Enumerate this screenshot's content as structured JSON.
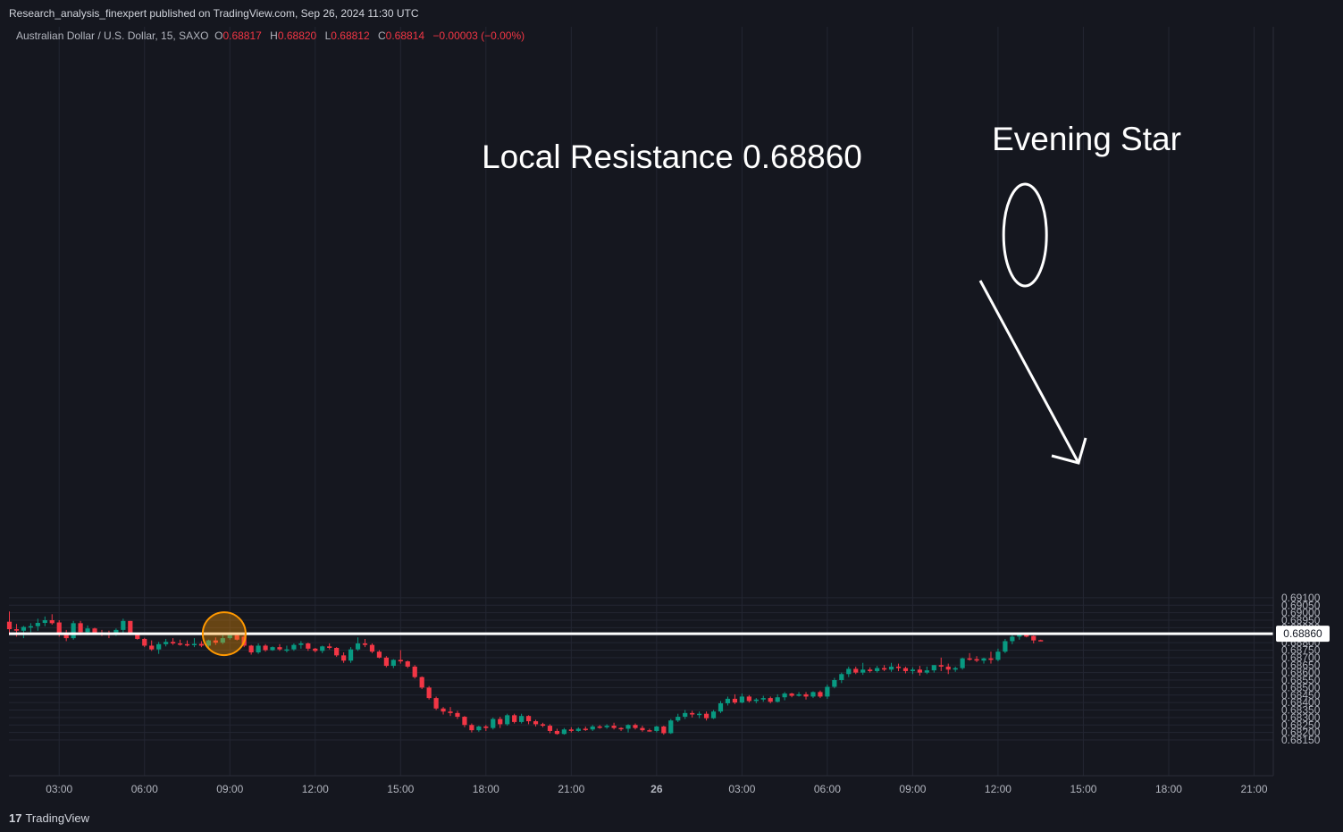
{
  "header": {
    "published_text": "Research_analysis_finexpert published on TradingView.com, Sep 26, 2024 11:30 UTC"
  },
  "symbol": {
    "name": "Australian Dollar / U.S. Dollar, 15, SAXO",
    "open_label": "O",
    "open": "0.68817",
    "high_label": "H",
    "high": "0.68820",
    "low_label": "L",
    "low": "0.68812",
    "close_label": "C",
    "close": "0.68814",
    "change": "−0.00003 (−0.00%)"
  },
  "footer": {
    "brand": "TradingView",
    "logo_glyph": "17"
  },
  "colors": {
    "background": "#15171f",
    "up": "#089981",
    "down": "#f23645",
    "grid": "#232632",
    "axis_text": "#b2b5be"
  },
  "chart_data": {
    "type": "candlestick",
    "title": "",
    "ylim": [
      0.6811,
      0.6912
    ],
    "y_ticks": [
      "0.68150",
      "0.68200",
      "0.68250",
      "0.68300",
      "0.68350",
      "0.68400",
      "0.68450",
      "0.68500",
      "0.68550",
      "0.68600",
      "0.68650",
      "0.68700",
      "0.68750",
      "0.68800",
      "0.68850",
      "0.68900",
      "0.68950",
      "0.69000",
      "0.69050",
      "0.69100"
    ],
    "x_ticks": [
      {
        "label": "03:00",
        "idx": 7,
        "bold": false
      },
      {
        "label": "06:00",
        "idx": 19,
        "bold": false
      },
      {
        "label": "09:00",
        "idx": 31,
        "bold": false
      },
      {
        "label": "12:00",
        "idx": 43,
        "bold": false
      },
      {
        "label": "15:00",
        "idx": 55,
        "bold": false
      },
      {
        "label": "18:00",
        "idx": 67,
        "bold": false
      },
      {
        "label": "21:00",
        "idx": 79,
        "bold": false
      },
      {
        "label": "26",
        "idx": 91,
        "bold": true
      },
      {
        "label": "03:00",
        "idx": 103,
        "bold": false
      },
      {
        "label": "06:00",
        "idx": 115,
        "bold": false
      },
      {
        "label": "09:00",
        "idx": 127,
        "bold": false
      },
      {
        "label": "12:00",
        "idx": 139,
        "bold": false
      },
      {
        "label": "15:00",
        "idx": 151,
        "bold": false
      },
      {
        "label": "18:00",
        "idx": 163,
        "bold": false
      },
      {
        "label": "21:00",
        "idx": 175,
        "bold": false
      }
    ],
    "ohlc": [
      [
        0.6894,
        0.69008,
        0.6885,
        0.6889
      ],
      [
        0.6889,
        0.68925,
        0.6884,
        0.6888
      ],
      [
        0.6888,
        0.68912,
        0.6883,
        0.68905
      ],
      [
        0.68905,
        0.6893,
        0.6887,
        0.6891
      ],
      [
        0.6891,
        0.6896,
        0.6888,
        0.68932
      ],
      [
        0.68932,
        0.68975,
        0.6891,
        0.6895
      ],
      [
        0.6895,
        0.6899,
        0.6892,
        0.6893
      ],
      [
        0.68935,
        0.6895,
        0.6884,
        0.6886
      ],
      [
        0.6886,
        0.68885,
        0.6881,
        0.6883
      ],
      [
        0.6883,
        0.68945,
        0.6882,
        0.6893
      ],
      [
        0.6893,
        0.68945,
        0.6885,
        0.6887
      ],
      [
        0.6887,
        0.68915,
        0.6885,
        0.68895
      ],
      [
        0.68895,
        0.689,
        0.68855,
        0.68865
      ],
      [
        0.68865,
        0.68885,
        0.68845,
        0.6886
      ],
      [
        0.6886,
        0.6888,
        0.6883,
        0.68855
      ],
      [
        0.68855,
        0.68895,
        0.68845,
        0.68885
      ],
      [
        0.68885,
        0.6896,
        0.68865,
        0.68945
      ],
      [
        0.68945,
        0.68945,
        0.6885,
        0.6886
      ],
      [
        0.6886,
        0.68865,
        0.6882,
        0.68825
      ],
      [
        0.68825,
        0.68832,
        0.6877,
        0.6878
      ],
      [
        0.6878,
        0.68815,
        0.68745,
        0.68755
      ],
      [
        0.68755,
        0.68805,
        0.68725,
        0.6879
      ],
      [
        0.6879,
        0.68825,
        0.68775,
        0.68805
      ],
      [
        0.68805,
        0.6883,
        0.68785,
        0.68795
      ],
      [
        0.68795,
        0.6882,
        0.6878,
        0.6879
      ],
      [
        0.6879,
        0.68815,
        0.68775,
        0.68785
      ],
      [
        0.68785,
        0.6883,
        0.6877,
        0.68792
      ],
      [
        0.68792,
        0.6881,
        0.6877,
        0.6878
      ],
      [
        0.6878,
        0.6882,
        0.68765,
        0.68815
      ],
      [
        0.68815,
        0.68835,
        0.68785,
        0.688
      ],
      [
        0.688,
        0.6885,
        0.6879,
        0.6883
      ],
      [
        0.6883,
        0.68865,
        0.6882,
        0.6885
      ],
      [
        0.6885,
        0.68865,
        0.68815,
        0.6882
      ],
      [
        0.6884,
        0.68855,
        0.6877,
        0.6878
      ],
      [
        0.6878,
        0.68785,
        0.6872,
        0.68735
      ],
      [
        0.68735,
        0.68795,
        0.68725,
        0.6878
      ],
      [
        0.6878,
        0.6879,
        0.6874,
        0.6875
      ],
      [
        0.6875,
        0.68775,
        0.68745,
        0.6877
      ],
      [
        0.6877,
        0.6879,
        0.68745,
        0.68755
      ],
      [
        0.68755,
        0.6878,
        0.68735,
        0.68755
      ],
      [
        0.68755,
        0.68795,
        0.68745,
        0.68785
      ],
      [
        0.68785,
        0.6881,
        0.6876,
        0.68795
      ],
      [
        0.68795,
        0.688,
        0.68745,
        0.6876
      ],
      [
        0.6876,
        0.68765,
        0.68735,
        0.68745
      ],
      [
        0.68745,
        0.6878,
        0.6873,
        0.68775
      ],
      [
        0.68775,
        0.68795,
        0.68755,
        0.68765
      ],
      [
        0.68765,
        0.6877,
        0.68705,
        0.68715
      ],
      [
        0.68715,
        0.68735,
        0.68665,
        0.6868
      ],
      [
        0.6868,
        0.6877,
        0.68665,
        0.68755
      ],
      [
        0.68755,
        0.68835,
        0.68745,
        0.68795
      ],
      [
        0.68795,
        0.68825,
        0.6877,
        0.68785
      ],
      [
        0.68785,
        0.68795,
        0.6873,
        0.6874
      ],
      [
        0.6874,
        0.6875,
        0.68695,
        0.687
      ],
      [
        0.687,
        0.6871,
        0.68635,
        0.68645
      ],
      [
        0.68645,
        0.6869,
        0.6863,
        0.68685
      ],
      [
        0.68685,
        0.6875,
        0.6866,
        0.68675
      ],
      [
        0.68675,
        0.6868,
        0.6863,
        0.6864
      ],
      [
        0.6864,
        0.6865,
        0.6856,
        0.6857
      ],
      [
        0.6857,
        0.68575,
        0.6849,
        0.685
      ],
      [
        0.685,
        0.6851,
        0.6842,
        0.6843
      ],
      [
        0.6843,
        0.6844,
        0.6835,
        0.6836
      ],
      [
        0.6836,
        0.6837,
        0.6832,
        0.6834
      ],
      [
        0.6834,
        0.6837,
        0.6831,
        0.6833
      ],
      [
        0.6833,
        0.68345,
        0.6829,
        0.68305
      ],
      [
        0.68305,
        0.6831,
        0.68235,
        0.6825
      ],
      [
        0.6825,
        0.6826,
        0.682,
        0.68215
      ],
      [
        0.68215,
        0.68245,
        0.68205,
        0.6824
      ],
      [
        0.6824,
        0.6825,
        0.6821,
        0.6823
      ],
      [
        0.6823,
        0.683,
        0.6822,
        0.6829
      ],
      [
        0.6829,
        0.68305,
        0.6823,
        0.68255
      ],
      [
        0.68255,
        0.68325,
        0.68245,
        0.68315
      ],
      [
        0.68315,
        0.68325,
        0.6826,
        0.6827
      ],
      [
        0.6827,
        0.68325,
        0.6826,
        0.6831
      ],
      [
        0.6831,
        0.68315,
        0.68255,
        0.68275
      ],
      [
        0.68275,
        0.68285,
        0.6824,
        0.68255
      ],
      [
        0.68255,
        0.68265,
        0.68235,
        0.68245
      ],
      [
        0.68245,
        0.68255,
        0.68195,
        0.6821
      ],
      [
        0.6821,
        0.68225,
        0.68185,
        0.6819
      ],
      [
        0.6819,
        0.6823,
        0.68185,
        0.6822
      ],
      [
        0.6822,
        0.68235,
        0.682,
        0.6821
      ],
      [
        0.6821,
        0.68235,
        0.68205,
        0.68225
      ],
      [
        0.68225,
        0.6824,
        0.6821,
        0.6822
      ],
      [
        0.6822,
        0.6825,
        0.6821,
        0.6824
      ],
      [
        0.6824,
        0.6825,
        0.68225,
        0.68235
      ],
      [
        0.68235,
        0.68255,
        0.68225,
        0.68245
      ],
      [
        0.68245,
        0.68265,
        0.6822,
        0.6823
      ],
      [
        0.6823,
        0.68235,
        0.6821,
        0.68225
      ],
      [
        0.68225,
        0.68255,
        0.682,
        0.6825
      ],
      [
        0.6825,
        0.6826,
        0.6822,
        0.6823
      ],
      [
        0.6823,
        0.68245,
        0.68205,
        0.68215
      ],
      [
        0.68215,
        0.68225,
        0.68205,
        0.6821
      ],
      [
        0.6821,
        0.68245,
        0.682,
        0.6824
      ],
      [
        0.6824,
        0.68245,
        0.68185,
        0.68195
      ],
      [
        0.68195,
        0.6829,
        0.6819,
        0.6828
      ],
      [
        0.6828,
        0.68325,
        0.6827,
        0.68305
      ],
      [
        0.68305,
        0.6835,
        0.6829,
        0.6833
      ],
      [
        0.6833,
        0.68345,
        0.683,
        0.6832
      ],
      [
        0.6832,
        0.6834,
        0.68295,
        0.68325
      ],
      [
        0.68325,
        0.6834,
        0.6828,
        0.68295
      ],
      [
        0.68295,
        0.6835,
        0.6829,
        0.6834
      ],
      [
        0.6834,
        0.6841,
        0.6833,
        0.68395
      ],
      [
        0.68395,
        0.6844,
        0.6838,
        0.68425
      ],
      [
        0.68425,
        0.68455,
        0.6839,
        0.684
      ],
      [
        0.684,
        0.6846,
        0.68395,
        0.6844
      ],
      [
        0.6844,
        0.6845,
        0.684,
        0.6841
      ],
      [
        0.6841,
        0.6843,
        0.68395,
        0.6842
      ],
      [
        0.6842,
        0.68445,
        0.68405,
        0.6843
      ],
      [
        0.6843,
        0.6844,
        0.68395,
        0.68405
      ],
      [
        0.68405,
        0.68455,
        0.684,
        0.68435
      ],
      [
        0.68435,
        0.6847,
        0.68415,
        0.6846
      ],
      [
        0.6846,
        0.68465,
        0.68435,
        0.68445
      ],
      [
        0.68445,
        0.6847,
        0.6844,
        0.68455
      ],
      [
        0.68455,
        0.6847,
        0.6842,
        0.6844
      ],
      [
        0.6844,
        0.68475,
        0.6843,
        0.6847
      ],
      [
        0.6847,
        0.6848,
        0.6843,
        0.6844
      ],
      [
        0.6844,
        0.6852,
        0.68425,
        0.68505
      ],
      [
        0.68505,
        0.68565,
        0.68495,
        0.6855
      ],
      [
        0.6855,
        0.686,
        0.6853,
        0.6859
      ],
      [
        0.6859,
        0.6864,
        0.6857,
        0.68625
      ],
      [
        0.68625,
        0.6864,
        0.6859,
        0.686
      ],
      [
        0.686,
        0.68665,
        0.68585,
        0.6862
      ],
      [
        0.6862,
        0.68635,
        0.686,
        0.6861
      ],
      [
        0.6861,
        0.68645,
        0.686,
        0.6863
      ],
      [
        0.6863,
        0.6865,
        0.6861,
        0.6862
      ],
      [
        0.6862,
        0.68665,
        0.68605,
        0.6864
      ],
      [
        0.6864,
        0.6866,
        0.6861,
        0.6863
      ],
      [
        0.6863,
        0.6864,
        0.68595,
        0.6861
      ],
      [
        0.6861,
        0.68635,
        0.6859,
        0.6862
      ],
      [
        0.6862,
        0.68645,
        0.6858,
        0.686
      ],
      [
        0.686,
        0.6864,
        0.6859,
        0.68615
      ],
      [
        0.68615,
        0.6865,
        0.686,
        0.6865
      ],
      [
        0.6865,
        0.687,
        0.6861,
        0.6864
      ],
      [
        0.6864,
        0.6866,
        0.6859,
        0.6862
      ],
      [
        0.6862,
        0.6864,
        0.68605,
        0.6863
      ],
      [
        0.6863,
        0.687,
        0.6862,
        0.68695
      ],
      [
        0.68695,
        0.6873,
        0.6868,
        0.6869
      ],
      [
        0.6869,
        0.6871,
        0.6867,
        0.6868
      ],
      [
        0.6868,
        0.687,
        0.6866,
        0.68695
      ],
      [
        0.68695,
        0.6874,
        0.6866,
        0.68685
      ],
      [
        0.68685,
        0.6876,
        0.68675,
        0.6874
      ],
      [
        0.6874,
        0.68825,
        0.6873,
        0.6881
      ],
      [
        0.6881,
        0.6885,
        0.6879,
        0.6884
      ],
      [
        0.6884,
        0.68862,
        0.6882,
        0.68855
      ],
      [
        0.68855,
        0.68857,
        0.68835,
        0.6884
      ],
      [
        0.68845,
        0.68848,
        0.68795,
        0.68815
      ],
      [
        0.68817,
        0.6882,
        0.68812,
        0.68814
      ]
    ],
    "resistance": {
      "value": 0.6886,
      "label": "Local Resistance 0.68860",
      "price_tag": "0.68860"
    },
    "annotations": {
      "pattern_label": "Evening Star"
    }
  }
}
